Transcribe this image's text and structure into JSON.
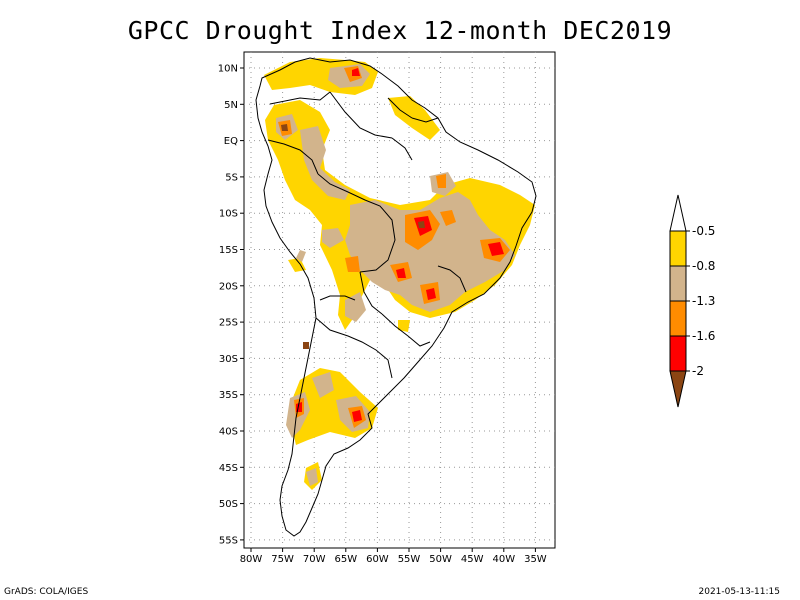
{
  "title": "GPCC Drought Index 12-month DEC2019",
  "map": {
    "lat_labels": [
      "10N",
      "5N",
      "EQ",
      "5S",
      "10S",
      "15S",
      "20S",
      "25S",
      "30S",
      "35S",
      "40S",
      "45S",
      "50S",
      "55S"
    ],
    "lon_labels": [
      "80W",
      "75W",
      "70W",
      "65W",
      "60W",
      "55W",
      "50W",
      "45W",
      "40W",
      "35W"
    ]
  },
  "legend": {
    "levels": [
      "-0.5",
      "-0.8",
      "-1.3",
      "-1.6",
      "-2"
    ],
    "colors": [
      "#ffffff",
      "#ffd500",
      "#d2b48c",
      "#ff8c00",
      "#ff0000",
      "#8b4513"
    ]
  },
  "footer": {
    "credit": "GrADS: COLA/IGES",
    "timestamp": "2021-05-13-11:15"
  }
}
